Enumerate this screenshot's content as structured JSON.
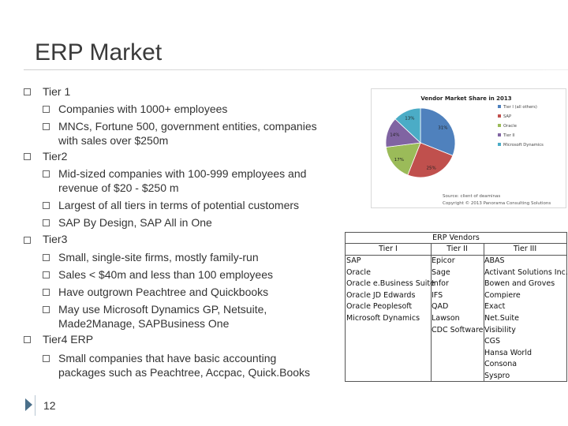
{
  "slide": {
    "title": "ERP Market",
    "page_number": "12"
  },
  "bullets": {
    "tier1": {
      "heading": "Tier 1",
      "items": [
        "Companies with 1000+ employees",
        "MNCs, Fortune 500, government entities, companies with sales over $250m"
      ]
    },
    "tier2": {
      "heading": "Tier2",
      "items": [
        "Mid-sized companies with 100-999 employees and revenue of $20 - $250 m",
        "Largest of all tiers in terms of potential customers",
        "SAP By Design, SAP All in One"
      ]
    },
    "tier3": {
      "heading": "Tier3",
      "items": [
        "Small, single-site firms, mostly family-run",
        "Sales < $40m and less than 100 employees",
        "Have outgrown Peachtree and Quickbooks",
        "May use Microsoft Dynamics GP, Netsuite, Made2Manage, SAPBusiness One"
      ]
    },
    "tier4": {
      "heading": "Tier4 ERP",
      "items": [
        "Small companies that have basic accounting packages such as Peachtree, Accpac, Quick.Books"
      ]
    }
  },
  "chart_data": {
    "type": "pie",
    "title": "Vendor Market Share in 2013",
    "categories": [
      "Tier I (all others)",
      "SAP",
      "Oracle",
      "Tier II",
      "Microsoft Dynamics"
    ],
    "values": [
      31,
      25,
      17,
      14,
      13
    ],
    "slice_labels": [
      "31%",
      "25%",
      "17%",
      "14%",
      "13%"
    ],
    "colors": [
      "#4f81bd",
      "#c0504d",
      "#9bbb59",
      "#8064a2",
      "#4bacc6"
    ],
    "source": "Source: client of deaminas",
    "copyright": "Copyright © 2013 Panorama Consulting Solutions",
    "legend_position": "right"
  },
  "vendors_table": {
    "title": "ERP Vendors",
    "columns": [
      {
        "header": "Tier I",
        "items": [
          "SAP",
          "Oracle",
          "Oracle e.Business Suite",
          "Oracle JD Edwards",
          "Oracle Peoplesoft",
          "Microsoft Dynamics"
        ]
      },
      {
        "header": "Tier II",
        "items": [
          "Epicor",
          "Sage",
          "Infor",
          "IFS",
          "QAD",
          "Lawson",
          "CDC Software"
        ]
      },
      {
        "header": "Tier III",
        "items": [
          "ABAS",
          "Activant Solutions Inc.",
          "Bowen and Groves",
          "Compiere",
          "Exact",
          "Net.Suite",
          "Visibility",
          "CGS",
          "Hansa World",
          "Consona",
          "Syspro"
        ]
      }
    ]
  }
}
